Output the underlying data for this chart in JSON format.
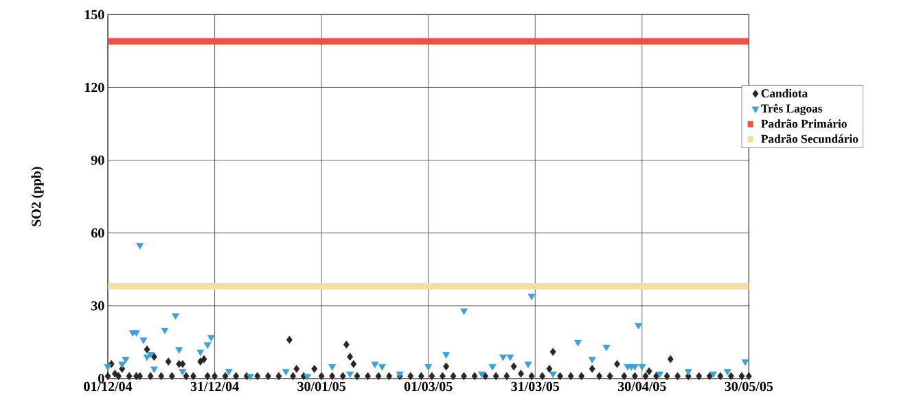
{
  "chart_data": {
    "type": "scatter",
    "ylabel": "SO2 (ppb)",
    "xlim": [
      "2004-12-01",
      "2005-05-30"
    ],
    "ylim": [
      0,
      150
    ],
    "xticks": [
      {
        "value": "2004-12-01",
        "label": "01/12/04"
      },
      {
        "value": "2004-12-31",
        "label": "31/12/04"
      },
      {
        "value": "2005-01-30",
        "label": "30/01/05"
      },
      {
        "value": "2005-03-01",
        "label": "01/03/05"
      },
      {
        "value": "2005-03-31",
        "label": "31/03/05"
      },
      {
        "value": "2005-04-30",
        "label": "30/04/05"
      },
      {
        "value": "2005-05-30",
        "label": "30/05/05"
      }
    ],
    "yticks": [
      0,
      30,
      60,
      90,
      120,
      150
    ],
    "grid": true,
    "legend": "right",
    "series": [
      {
        "name": "Candiota",
        "marker": "diamond",
        "color": "#2b2626",
        "x": [
          "2004-12-01",
          "2004-12-02",
          "2004-12-03",
          "2004-12-04",
          "2004-12-05",
          "2004-12-07",
          "2004-12-09",
          "2004-12-10",
          "2004-12-12",
          "2004-12-13",
          "2004-12-14",
          "2004-12-16",
          "2004-12-18",
          "2004-12-19",
          "2004-12-21",
          "2004-12-22",
          "2004-12-23",
          "2004-12-25",
          "2004-12-27",
          "2004-12-28",
          "2004-12-29",
          "2004-12-31",
          "2005-01-03",
          "2005-01-06",
          "2005-01-09",
          "2005-01-12",
          "2005-01-15",
          "2005-01-18",
          "2005-01-21",
          "2005-01-22",
          "2005-01-23",
          "2005-01-25",
          "2005-01-28",
          "2005-01-30",
          "2005-02-02",
          "2005-02-05",
          "2005-02-06",
          "2005-02-07",
          "2005-02-08",
          "2005-02-09",
          "2005-02-12",
          "2005-02-15",
          "2005-02-18",
          "2005-02-21",
          "2005-02-24",
          "2005-02-27",
          "2005-03-02",
          "2005-03-05",
          "2005-03-06",
          "2005-03-08",
          "2005-03-11",
          "2005-03-14",
          "2005-03-17",
          "2005-03-20",
          "2005-03-23",
          "2005-03-25",
          "2005-03-27",
          "2005-03-30",
          "2005-04-02",
          "2005-04-04",
          "2005-04-05",
          "2005-04-07",
          "2005-04-10",
          "2005-04-13",
          "2005-04-16",
          "2005-04-18",
          "2005-04-21",
          "2005-04-23",
          "2005-04-25",
          "2005-04-28",
          "2005-05-01",
          "2005-05-02",
          "2005-05-04",
          "2005-05-07",
          "2005-05-08",
          "2005-05-10",
          "2005-05-13",
          "2005-05-16",
          "2005-05-19",
          "2005-05-22",
          "2005-05-25",
          "2005-05-28",
          "2005-05-30"
        ],
        "values": [
          1,
          6,
          2,
          1,
          4,
          1,
          1,
          1,
          12,
          1,
          9,
          1,
          7,
          1,
          6,
          6,
          1,
          1,
          7,
          8,
          1,
          1,
          1,
          1,
          1,
          1,
          1,
          1,
          16,
          1,
          4,
          1,
          4,
          1,
          1,
          1,
          14,
          9,
          6,
          1,
          1,
          1,
          1,
          1,
          1,
          1,
          1,
          1,
          5,
          1,
          1,
          1,
          1,
          1,
          1,
          5,
          2,
          1,
          1,
          4,
          11,
          1,
          1,
          1,
          4,
          1,
          1,
          6,
          1,
          1,
          1,
          3,
          1,
          1,
          8,
          1,
          1,
          1,
          1,
          1,
          1,
          1,
          1
        ]
      },
      {
        "name": "Três Lagoas",
        "marker": "triangle",
        "color": "#3fa0d8",
        "x": [
          "2004-12-01",
          "2004-12-05",
          "2004-12-06",
          "2004-12-08",
          "2004-12-09",
          "2004-12-10",
          "2004-12-11",
          "2004-12-12",
          "2004-12-13",
          "2004-12-14",
          "2004-12-17",
          "2004-12-20",
          "2004-12-21",
          "2004-12-22",
          "2004-12-27",
          "2004-12-29",
          "2004-12-30",
          "2005-01-04",
          "2005-01-10",
          "2005-01-20",
          "2005-01-26",
          "2005-02-02",
          "2005-02-07",
          "2005-02-14",
          "2005-02-16",
          "2005-02-21",
          "2005-03-01",
          "2005-03-06",
          "2005-03-11",
          "2005-03-16",
          "2005-03-19",
          "2005-03-22",
          "2005-03-24",
          "2005-03-29",
          "2005-03-30",
          "2005-04-05",
          "2005-04-12",
          "2005-04-16",
          "2005-04-20",
          "2005-04-26",
          "2005-04-27",
          "2005-04-28",
          "2005-04-29",
          "2005-04-30",
          "2005-05-05",
          "2005-05-13",
          "2005-05-20",
          "2005-05-24",
          "2005-05-29"
        ],
        "values": [
          5,
          6,
          8,
          19,
          19,
          55,
          16,
          9,
          10,
          4,
          20,
          26,
          12,
          3,
          11,
          14,
          17,
          3,
          1,
          3,
          1,
          5,
          2,
          6,
          5,
          2,
          5,
          10,
          28,
          2,
          5,
          9,
          9,
          6,
          34,
          2,
          15,
          8,
          13,
          5,
          5,
          5,
          22,
          5,
          2,
          3,
          2,
          3,
          7
        ]
      },
      {
        "name": "Padrão Primário",
        "type": "line",
        "line_style": "solid",
        "color": "#e8544c",
        "x": [
          "2004-12-01",
          "2005-05-30"
        ],
        "values": [
          139,
          139
        ]
      },
      {
        "name": "Padrão Secundário",
        "type": "line",
        "line_style": "solid",
        "color": "#f3e0a0",
        "x": [
          "2004-12-01",
          "2005-05-30"
        ],
        "values": [
          38,
          38
        ]
      }
    ]
  }
}
